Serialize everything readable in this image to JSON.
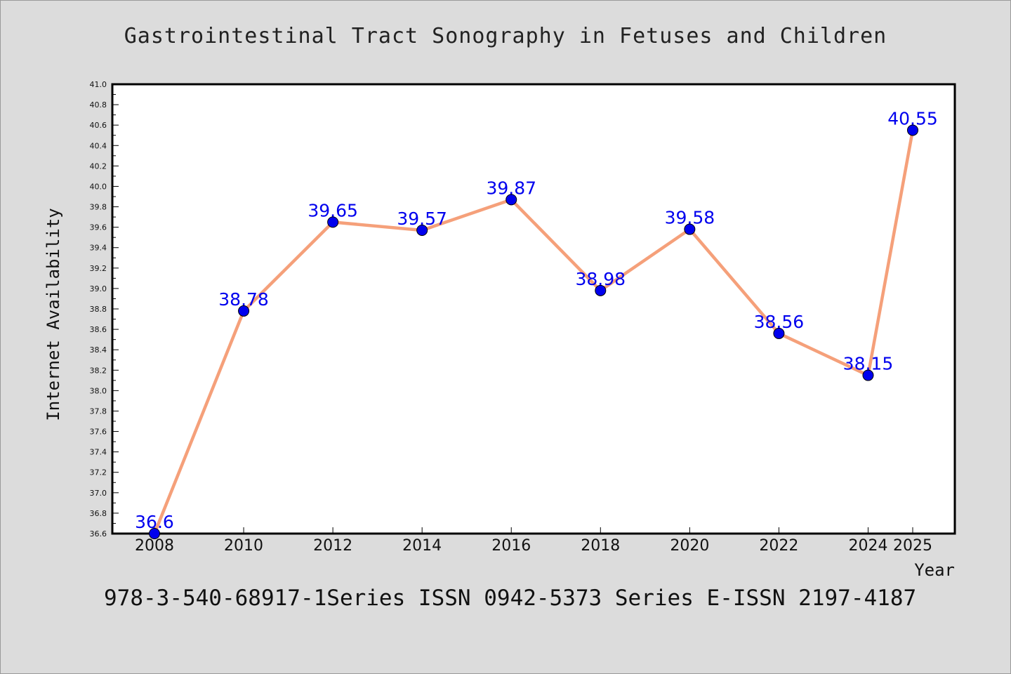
{
  "title": "Gastrointestinal Tract Sonography in Fetuses and Children",
  "footer": "978-3-540-68917-1Series ISSN 0942-5373 Series E-ISSN 2197-4187",
  "colors": {
    "background": "#dcdcdc",
    "plot_background": "#ffffff",
    "line": "#f5a07a",
    "marker": "#0000ee",
    "data_label": "#0000ee"
  },
  "chart_data": {
    "type": "line",
    "title": "Gastrointestinal Tract Sonography in Fetuses and Children",
    "xlabel": "Year",
    "ylabel": "Internet Availability",
    "x": [
      "2008",
      "2010",
      "2012",
      "2014",
      "2016",
      "2018",
      "2020",
      "2022",
      "2024",
      "2025"
    ],
    "values": [
      36.6,
      38.78,
      39.65,
      39.57,
      39.87,
      38.98,
      39.58,
      38.56,
      38.15,
      40.55
    ],
    "data_labels": [
      "36.6",
      "38.78",
      "39.65",
      "39.57",
      "39.87",
      "38.98",
      "39.58",
      "38.56",
      "38.15",
      "40.55"
    ],
    "ylim": [
      36.6,
      41.0
    ],
    "y_ticks": [
      "36.6",
      "36.8",
      "37.0",
      "37.2",
      "37.4",
      "37.6",
      "37.8",
      "38.0",
      "38.2",
      "38.4",
      "38.6",
      "38.8",
      "39.0",
      "39.2",
      "39.4",
      "39.6",
      "39.8",
      "40.0",
      "40.2",
      "40.4",
      "40.6",
      "40.8",
      "41.0"
    ],
    "grid": false,
    "legend": "none"
  }
}
